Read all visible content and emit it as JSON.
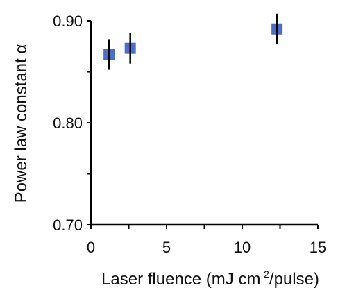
{
  "chart_data": {
    "type": "scatter",
    "title": "",
    "xlabel_main": "Laser fluence (mJ cm",
    "xlabel_sup": "-2",
    "xlabel_tail": "/pulse)",
    "ylabel": "Power law constant α",
    "xlim": [
      0,
      15
    ],
    "ylim": [
      0.7,
      0.9
    ],
    "x_ticks": [
      0,
      5,
      10,
      15
    ],
    "x_tick_labels": [
      "0",
      "5",
      "10",
      "15"
    ],
    "y_ticks": [
      0.7,
      0.8,
      0.9
    ],
    "y_tick_labels": [
      "0.70",
      "0.80",
      "0.90"
    ],
    "grid": false,
    "legend": "none",
    "marker_color": "#4a6fc4",
    "errorbar_color": "#000000",
    "series": [
      {
        "points": [
          {
            "x": 1.2,
            "y": 0.867,
            "err": 0.015
          },
          {
            "x": 2.6,
            "y": 0.873,
            "err": 0.015
          },
          {
            "x": 12.3,
            "y": 0.892,
            "err": 0.015
          }
        ]
      }
    ]
  }
}
